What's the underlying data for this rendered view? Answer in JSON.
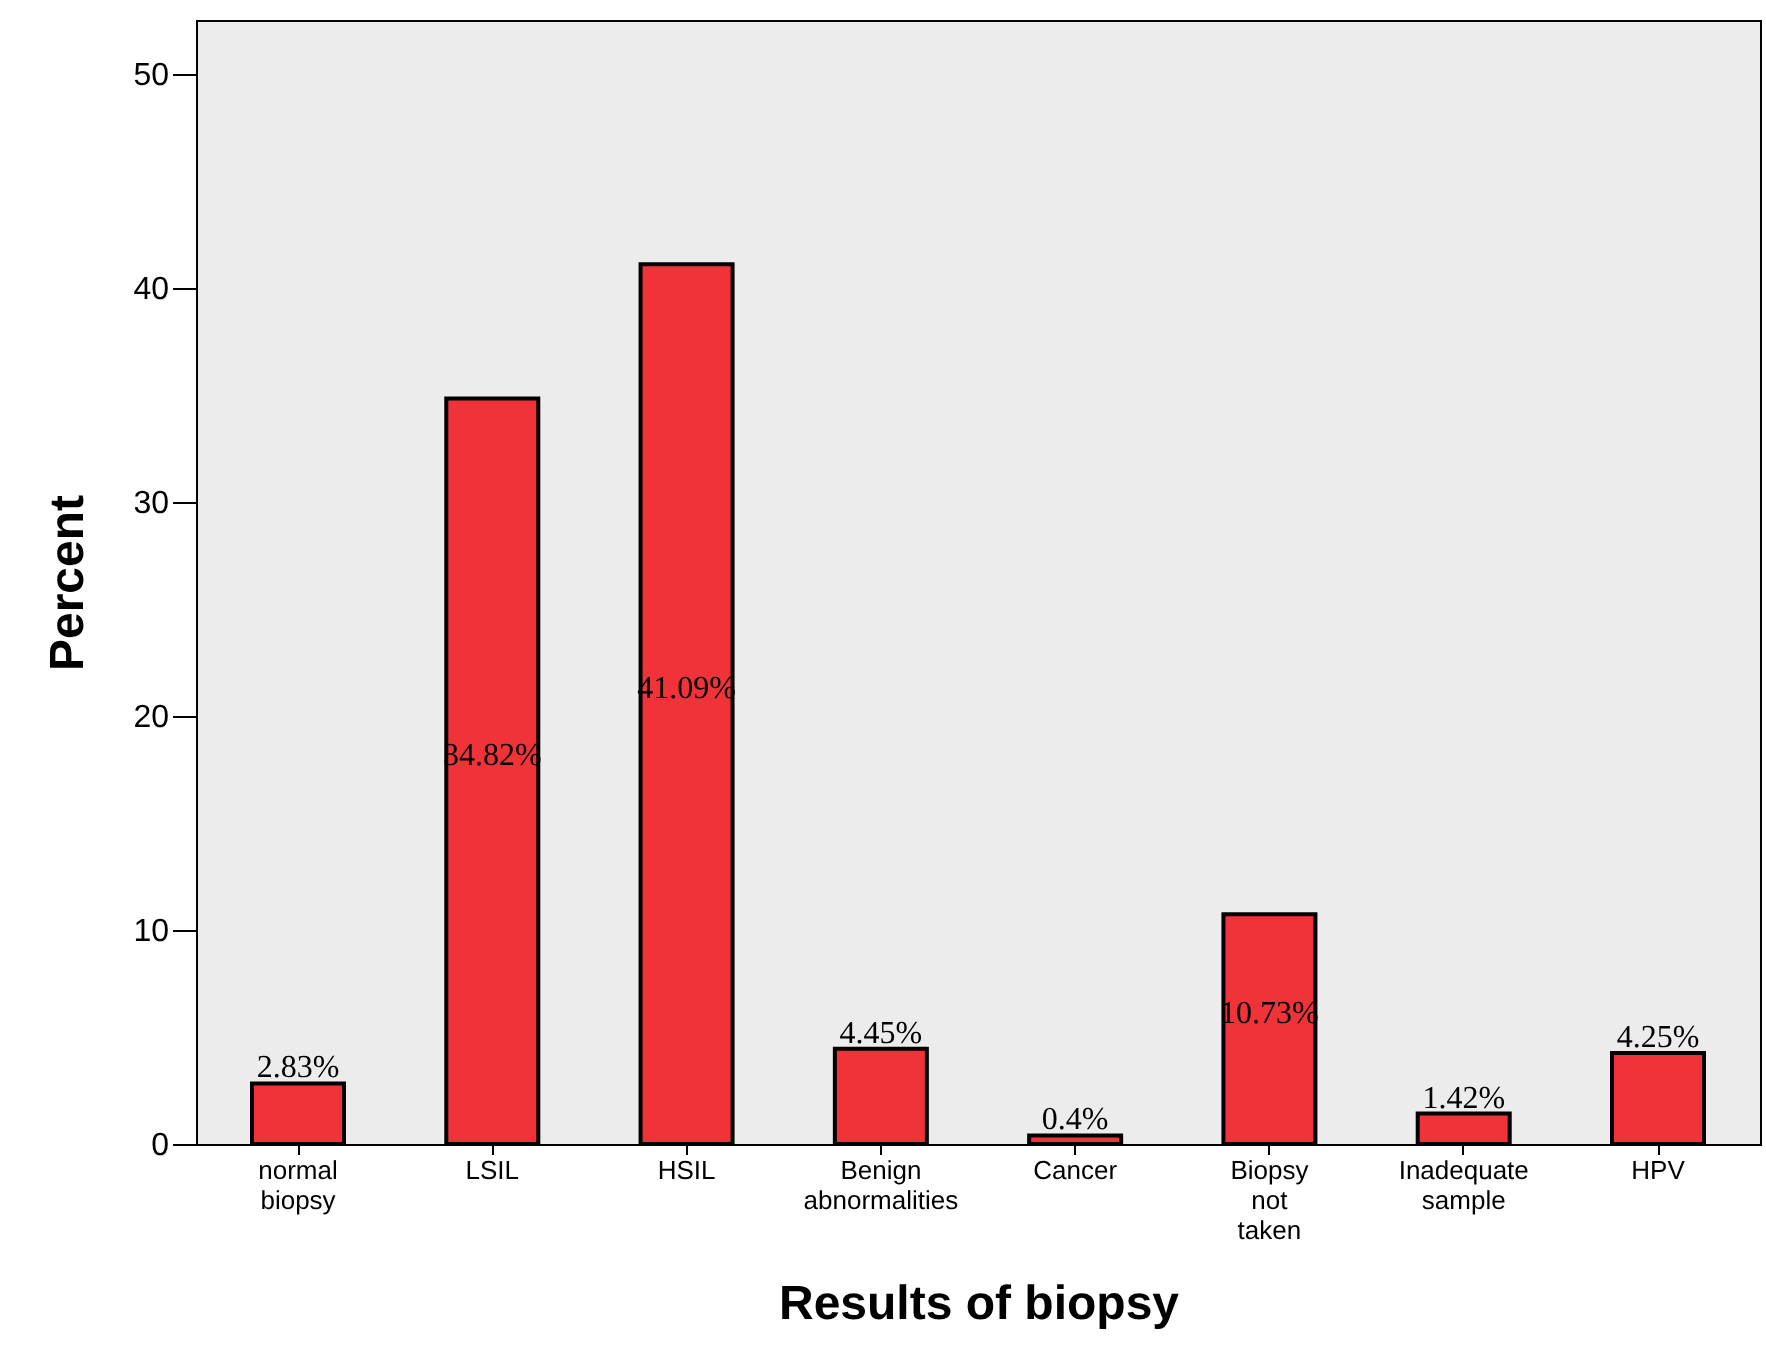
{
  "chart_data": {
    "type": "bar",
    "xlabel": "Results of biopsy",
    "ylabel": "Percent",
    "categories": [
      "normal biopsy",
      "LSIL",
      "HSIL",
      "Benign abnormalities",
      "Cancer",
      "Biopsy not taken",
      "Inadequate sample",
      "HPV"
    ],
    "values": [
      2.83,
      34.82,
      41.09,
      4.45,
      0.4,
      10.73,
      1.42,
      4.25
    ],
    "value_labels": [
      "2.83%",
      "34.82%",
      "41.09%",
      "4.45%",
      "0.4%",
      "10.73%",
      "1.42%",
      "4.25%"
    ],
    "color": "#ef3338",
    "ylim": [
      0,
      52.5
    ],
    "yticks": [
      0,
      10,
      20,
      30,
      40,
      50
    ],
    "grid": false
  }
}
